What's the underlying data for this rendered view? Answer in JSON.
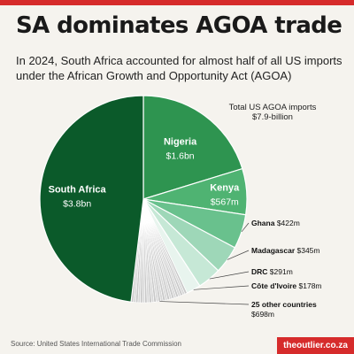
{
  "header": {
    "title": "SA dominates AGOA trade",
    "subtitle": "In 2024, South Africa accounted for almost half of all US imports under the African Growth and Opportunity Act (AGOA)"
  },
  "footer": {
    "source": "Source: United States International Trade Commission",
    "brand": "theoutlier.co.za"
  },
  "colors": {
    "accent": "#d62b2b",
    "background": "#f5f3ee",
    "south_africa": "#0b5a2a",
    "nigeria": "#2e9450",
    "kenya": "#4fb372",
    "ghana": "#69c18d",
    "madagascar": "#9ed7b8",
    "drc": "#c6e8d6",
    "cote_divoire": "#e8f4ee",
    "others": "#c8c8c8"
  },
  "chart_data": {
    "type": "pie",
    "total_label": "Total US AGOA imports",
    "total_value": "$7.9-billion",
    "slices": [
      {
        "name": "South Africa",
        "label": "$3.8bn",
        "value": 3.8,
        "color": "#0b5a2a"
      },
      {
        "name": "Nigeria",
        "label": "$1.6bn",
        "value": 1.6,
        "color": "#2e9450"
      },
      {
        "name": "Kenya",
        "label": "$567m",
        "value": 0.567,
        "color": "#4fb372"
      },
      {
        "name": "Ghana",
        "label": "$422m",
        "value": 0.422,
        "color": "#69c18d"
      },
      {
        "name": "Madagascar",
        "label": "$345m",
        "value": 0.345,
        "color": "#9ed7b8"
      },
      {
        "name": "DRC",
        "label": "$291m",
        "value": 0.291,
        "color": "#c6e8d6"
      },
      {
        "name": "Côte d'Ivoire",
        "label": "$178m",
        "value": 0.178,
        "color": "#e8f4ee"
      },
      {
        "name": "25 other countries",
        "label": "$698m",
        "value": 0.698,
        "color": "#c8c8c8",
        "segments": 25
      }
    ]
  }
}
